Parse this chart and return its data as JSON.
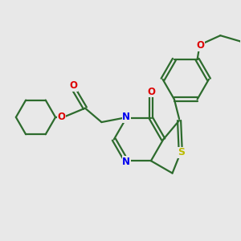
{
  "bg_color": "#e8e8e8",
  "bond_color": "#2d6b2d",
  "atom_colors": {
    "N": "#0000ee",
    "O": "#dd0000",
    "S": "#bbbb00"
  },
  "line_width": 1.6,
  "font_size": 8.5
}
